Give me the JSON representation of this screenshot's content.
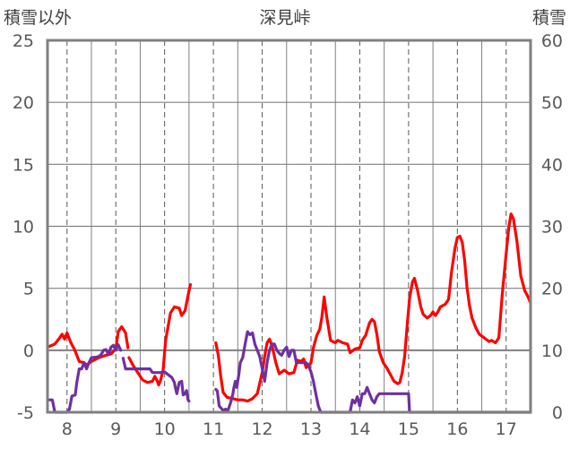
{
  "chart_data": {
    "type": "line",
    "title": "深見峠",
    "left_axis": {
      "label": "積雪以外",
      "ylim": [
        -5,
        25
      ],
      "ticks": [
        25,
        20,
        15,
        10,
        5,
        0,
        -5
      ]
    },
    "right_axis": {
      "label": "積雪",
      "ylim": [
        0,
        60
      ],
      "ticks": [
        60,
        50,
        40,
        30,
        20,
        10,
        0
      ]
    },
    "x_axis": {
      "xlim": [
        7.6,
        17.5
      ],
      "ticks": [
        "8",
        "9",
        "10",
        "11",
        "12",
        "13",
        "14",
        "15",
        "16",
        "17"
      ]
    },
    "grid": true,
    "colors": {
      "red": "#ff0000",
      "purple": "#7030a0",
      "axis": "#808080",
      "grid": "#595959"
    },
    "series": [
      {
        "color": "red",
        "axis": "left",
        "segments": [
          [
            [
              7.63,
              0.3
            ],
            [
              7.75,
              0.5
            ],
            [
              7.85,
              1.0
            ],
            [
              7.9,
              1.3
            ],
            [
              7.95,
              0.9
            ],
            [
              8.0,
              1.4
            ],
            [
              8.08,
              0.6
            ],
            [
              8.15,
              0.1
            ],
            [
              8.25,
              -0.9
            ],
            [
              8.35,
              -1.0
            ],
            [
              8.4,
              -1.2
            ],
            [
              8.5,
              -0.9
            ],
            [
              8.65,
              -0.6
            ],
            [
              8.8,
              -0.4
            ],
            [
              8.9,
              -0.3
            ],
            [
              9.0,
              0.1
            ],
            [
              9.05,
              1.5
            ],
            [
              9.12,
              1.9
            ],
            [
              9.2,
              1.4
            ],
            [
              9.25,
              0.2
            ]
          ],
          [
            [
              9.27,
              -0.6
            ],
            [
              9.35,
              -1.2
            ],
            [
              9.45,
              -1.8
            ],
            [
              9.55,
              -2.4
            ],
            [
              9.65,
              -2.6
            ],
            [
              9.75,
              -2.5
            ],
            [
              9.8,
              -2.1
            ],
            [
              9.85,
              -2.5
            ],
            [
              9.88,
              -2.8
            ],
            [
              9.92,
              -2.4
            ],
            [
              9.97,
              -1.6
            ],
            [
              10.02,
              0.8
            ],
            [
              10.08,
              2.1
            ],
            [
              10.12,
              3.0
            ],
            [
              10.2,
              3.5
            ],
            [
              10.3,
              3.4
            ],
            [
              10.35,
              2.8
            ],
            [
              10.42,
              3.2
            ],
            [
              10.5,
              4.8
            ],
            [
              10.53,
              5.3
            ]
          ],
          [
            [
              11.05,
              0.6
            ],
            [
              11.1,
              -0.4
            ],
            [
              11.15,
              -2.1
            ],
            [
              11.2,
              -3.4
            ],
            [
              11.28,
              -3.8
            ],
            [
              11.4,
              -3.9
            ],
            [
              11.5,
              -4.0
            ],
            [
              11.6,
              -4.0
            ],
            [
              11.7,
              -4.1
            ],
            [
              11.8,
              -3.9
            ],
            [
              11.9,
              -3.5
            ],
            [
              12.0,
              -1.8
            ],
            [
              12.05,
              -0.5
            ],
            [
              12.1,
              0.6
            ],
            [
              12.15,
              0.9
            ],
            [
              12.2,
              0.4
            ],
            [
              12.28,
              -1.0
            ],
            [
              12.35,
              -1.9
            ],
            [
              12.45,
              -1.6
            ],
            [
              12.55,
              -1.9
            ],
            [
              12.65,
              -1.8
            ],
            [
              12.72,
              -0.8
            ],
            [
              12.8,
              -0.9
            ],
            [
              12.85,
              -0.7
            ],
            [
              12.9,
              -1.4
            ],
            [
              13.0,
              -1.0
            ],
            [
              13.05,
              0.2
            ],
            [
              13.12,
              1.2
            ],
            [
              13.18,
              1.7
            ],
            [
              13.22,
              2.6
            ],
            [
              13.27,
              4.3
            ],
            [
              13.32,
              2.8
            ],
            [
              13.4,
              0.8
            ],
            [
              13.5,
              0.6
            ],
            [
              13.55,
              0.8
            ],
            [
              13.65,
              0.6
            ],
            [
              13.75,
              0.5
            ],
            [
              13.8,
              -0.2
            ],
            [
              13.9,
              0.1
            ],
            [
              14.0,
              0.2
            ],
            [
              14.05,
              0.8
            ],
            [
              14.12,
              1.2
            ],
            [
              14.2,
              2.2
            ],
            [
              14.25,
              2.5
            ],
            [
              14.3,
              2.3
            ],
            [
              14.35,
              1.3
            ],
            [
              14.4,
              -0.1
            ],
            [
              14.48,
              -1.0
            ],
            [
              14.55,
              -1.4
            ],
            [
              14.62,
              -1.9
            ],
            [
              14.7,
              -2.5
            ],
            [
              14.78,
              -2.7
            ],
            [
              14.82,
              -2.6
            ],
            [
              14.87,
              -1.8
            ],
            [
              14.92,
              -0.5
            ],
            [
              14.97,
              2.0
            ],
            [
              15.02,
              4.2
            ],
            [
              15.08,
              5.5
            ],
            [
              15.12,
              5.8
            ],
            [
              15.18,
              4.9
            ],
            [
              15.25,
              3.5
            ],
            [
              15.3,
              2.9
            ],
            [
              15.38,
              2.6
            ],
            [
              15.45,
              2.8
            ],
            [
              15.5,
              3.1
            ],
            [
              15.55,
              2.8
            ],
            [
              15.6,
              3.1
            ],
            [
              15.65,
              3.5
            ],
            [
              15.75,
              3.7
            ],
            [
              15.82,
              4.1
            ],
            [
              15.88,
              6.3
            ],
            [
              15.95,
              8.2
            ],
            [
              16.0,
              9.1
            ],
            [
              16.05,
              9.2
            ],
            [
              16.1,
              8.7
            ],
            [
              16.15,
              7.2
            ],
            [
              16.2,
              5.0
            ],
            [
              16.25,
              3.6
            ],
            [
              16.3,
              2.6
            ],
            [
              16.38,
              1.8
            ],
            [
              16.45,
              1.3
            ],
            [
              16.55,
              1.0
            ],
            [
              16.65,
              0.7
            ],
            [
              16.7,
              0.8
            ],
            [
              16.78,
              0.6
            ],
            [
              16.85,
              1.0
            ],
            [
              16.92,
              4.5
            ],
            [
              16.98,
              7.0
            ],
            [
              17.05,
              9.8
            ],
            [
              17.1,
              11.0
            ],
            [
              17.15,
              10.6
            ],
            [
              17.22,
              8.8
            ],
            [
              17.3,
              6.0
            ],
            [
              17.38,
              4.8
            ],
            [
              17.45,
              4.3
            ],
            [
              17.5,
              3.8
            ]
          ]
        ]
      },
      {
        "color": "purple",
        "axis": "right",
        "segments": [
          [
            [
              7.63,
              2.0
            ],
            [
              7.7,
              2.0
            ],
            [
              7.75,
              0.0
            ],
            [
              7.9,
              0.0
            ],
            [
              8.0,
              0.0
            ],
            [
              8.05,
              0.5
            ],
            [
              8.1,
              2.6
            ],
            [
              8.17,
              2.8
            ],
            [
              8.2,
              4.8
            ],
            [
              8.25,
              7.0
            ],
            [
              8.3,
              7.0
            ],
            [
              8.35,
              8.0
            ],
            [
              8.4,
              7.0
            ],
            [
              8.45,
              8.0
            ],
            [
              8.5,
              8.8
            ],
            [
              8.6,
              8.9
            ],
            [
              8.65,
              9.0
            ],
            [
              8.7,
              9.3
            ],
            [
              8.75,
              10.0
            ],
            [
              8.8,
              10.1
            ],
            [
              8.85,
              9.3
            ],
            [
              8.9,
              10.5
            ],
            [
              8.95,
              10.8
            ],
            [
              9.0,
              10.0
            ],
            [
              9.05,
              10.9
            ],
            [
              9.1,
              10.0
            ]
          ],
          [
            [
              9.15,
              8.7
            ],
            [
              9.2,
              7.0
            ],
            [
              9.35,
              7.0
            ],
            [
              9.5,
              7.0
            ],
            [
              9.6,
              7.0
            ],
            [
              9.7,
              7.0
            ],
            [
              9.75,
              6.4
            ],
            [
              9.85,
              6.4
            ],
            [
              9.9,
              6.4
            ],
            [
              10.0,
              6.5
            ],
            [
              10.1,
              5.9
            ],
            [
              10.15,
              5.6
            ],
            [
              10.2,
              4.8
            ],
            [
              10.22,
              4.0
            ],
            [
              10.25,
              3.0
            ],
            [
              10.3,
              4.8
            ],
            [
              10.35,
              5.0
            ],
            [
              10.38,
              2.8
            ],
            [
              10.42,
              3.0
            ],
            [
              10.45,
              3.5
            ],
            [
              10.48,
              2.0
            ],
            [
              10.5,
              1.8
            ]
          ],
          [
            [
              11.05,
              3.7
            ],
            [
              11.08,
              3.4
            ],
            [
              11.12,
              1.0
            ],
            [
              11.2,
              0.3
            ],
            [
              11.25,
              0.5
            ],
            [
              11.3,
              0.3
            ],
            [
              11.35,
              1.5
            ],
            [
              11.4,
              3.0
            ],
            [
              11.42,
              4.0
            ],
            [
              11.45,
              5.0
            ],
            [
              11.48,
              4.0
            ],
            [
              11.52,
              6.0
            ],
            [
              11.55,
              8.0
            ],
            [
              11.6,
              8.8
            ],
            [
              11.65,
              11.0
            ],
            [
              11.7,
              13.0
            ],
            [
              11.75,
              12.5
            ],
            [
              11.8,
              12.8
            ],
            [
              11.85,
              11.0
            ],
            [
              11.9,
              10.0
            ],
            [
              11.95,
              9.0
            ],
            [
              12.0,
              7.0
            ],
            [
              12.05,
              5.0
            ],
            [
              12.1,
              8.0
            ],
            [
              12.15,
              10.0
            ],
            [
              12.2,
              11.0
            ],
            [
              12.25,
              11.0
            ],
            [
              12.3,
              10.0
            ],
            [
              12.35,
              9.5
            ],
            [
              12.4,
              9.2
            ],
            [
              12.45,
              10.0
            ],
            [
              12.5,
              10.5
            ],
            [
              12.55,
              9.0
            ],
            [
              12.6,
              10.0
            ],
            [
              12.65,
              10.0
            ],
            [
              12.7,
              8.0
            ],
            [
              12.8,
              8.0
            ],
            [
              12.9,
              8.0
            ],
            [
              12.95,
              7.5
            ],
            [
              13.0,
              6.5
            ],
            [
              13.05,
              5.0
            ],
            [
              13.1,
              3.0
            ],
            [
              13.15,
              1.0
            ],
            [
              13.2,
              0.0
            ],
            [
              13.4,
              0.0
            ],
            [
              13.6,
              0.0
            ],
            [
              13.8,
              0.0
            ],
            [
              13.85,
              2.0
            ],
            [
              13.9,
              1.5
            ],
            [
              13.95,
              2.5
            ],
            [
              14.0,
              1.0
            ],
            [
              14.05,
              3.0
            ],
            [
              14.1,
              3.0
            ],
            [
              14.15,
              4.0
            ],
            [
              14.2,
              3.0
            ],
            [
              14.25,
              2.0
            ],
            [
              14.3,
              1.5
            ],
            [
              14.35,
              2.5
            ],
            [
              14.4,
              3.0
            ],
            [
              14.5,
              3.0
            ],
            [
              14.7,
              3.0
            ],
            [
              14.9,
              3.0
            ],
            [
              15.0,
              3.0
            ],
            [
              15.02,
              0.0
            ],
            [
              15.5,
              0.0
            ],
            [
              16.0,
              0.0
            ],
            [
              16.5,
              0.0
            ],
            [
              17.0,
              0.0
            ],
            [
              17.5,
              0.0
            ]
          ]
        ]
      }
    ]
  }
}
